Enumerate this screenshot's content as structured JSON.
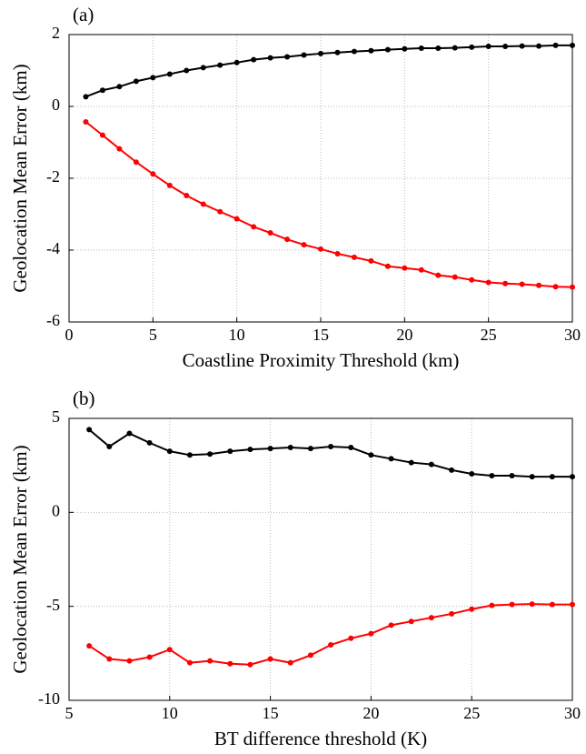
{
  "chart_data": [
    {
      "type": "line",
      "annotation": "(a)",
      "x_label": "Coastline Proximity Threshold (km)",
      "y_label": "Geolocation Mean Error (km)",
      "x": [
        1,
        2,
        3,
        4,
        5,
        6,
        7,
        8,
        9,
        10,
        11,
        12,
        13,
        14,
        15,
        16,
        17,
        18,
        19,
        20,
        21,
        22,
        23,
        24,
        25,
        26,
        27,
        28,
        29,
        30
      ],
      "series": [
        {
          "color": "#000000",
          "values": [
            0.27,
            0.45,
            0.55,
            0.7,
            0.8,
            0.9,
            1.0,
            1.08,
            1.15,
            1.22,
            1.3,
            1.35,
            1.38,
            1.43,
            1.47,
            1.5,
            1.53,
            1.55,
            1.58,
            1.6,
            1.62,
            1.62,
            1.63,
            1.65,
            1.67,
            1.67,
            1.68,
            1.68,
            1.7,
            1.7
          ]
        },
        {
          "color": "#ff0000",
          "values": [
            -0.43,
            -0.8,
            -1.18,
            -1.55,
            -1.88,
            -2.2,
            -2.48,
            -2.72,
            -2.93,
            -3.13,
            -3.35,
            -3.52,
            -3.7,
            -3.85,
            -3.97,
            -4.1,
            -4.2,
            -4.3,
            -4.45,
            -4.5,
            -4.55,
            -4.7,
            -4.75,
            -4.83,
            -4.9,
            -4.93,
            -4.95,
            -4.98,
            -5.02,
            -5.03
          ]
        }
      ],
      "xlim": [
        0,
        30
      ],
      "xticks": [
        0,
        5,
        10,
        15,
        20,
        25,
        30
      ],
      "ylim": [
        -6,
        2
      ],
      "yticks": [
        -6,
        -4,
        -2,
        0,
        2
      ],
      "grid": true
    },
    {
      "type": "line",
      "annotation": "(b)",
      "x_label": "BT difference threshold (K)",
      "y_label": "Geolocation Mean Error (km)",
      "x": [
        6,
        7,
        8,
        9,
        10,
        11,
        12,
        13,
        14,
        15,
        16,
        17,
        18,
        19,
        20,
        21,
        22,
        23,
        24,
        25,
        26,
        27,
        28,
        29,
        30
      ],
      "series": [
        {
          "color": "#000000",
          "values": [
            4.4,
            3.5,
            4.2,
            3.7,
            3.25,
            3.05,
            3.1,
            3.25,
            3.35,
            3.4,
            3.45,
            3.4,
            3.5,
            3.45,
            3.05,
            2.85,
            2.65,
            2.55,
            2.25,
            2.05,
            1.95,
            1.95,
            1.9,
            1.9,
            1.9
          ]
        },
        {
          "color": "#ff0000",
          "values": [
            -7.1,
            -7.8,
            -7.9,
            -7.7,
            -7.3,
            -8.0,
            -7.9,
            -8.05,
            -8.1,
            -7.8,
            -8.0,
            -7.6,
            -7.05,
            -6.7,
            -6.45,
            -6.0,
            -5.8,
            -5.6,
            -5.4,
            -5.15,
            -4.95,
            -4.9,
            -4.88,
            -4.9,
            -4.9
          ]
        }
      ],
      "xlim": [
        5,
        30
      ],
      "xticks": [
        5,
        10,
        15,
        20,
        25,
        30
      ],
      "ylim": [
        -10,
        5
      ],
      "yticks": [
        -10,
        -5,
        0,
        5
      ],
      "grid": true
    }
  ]
}
